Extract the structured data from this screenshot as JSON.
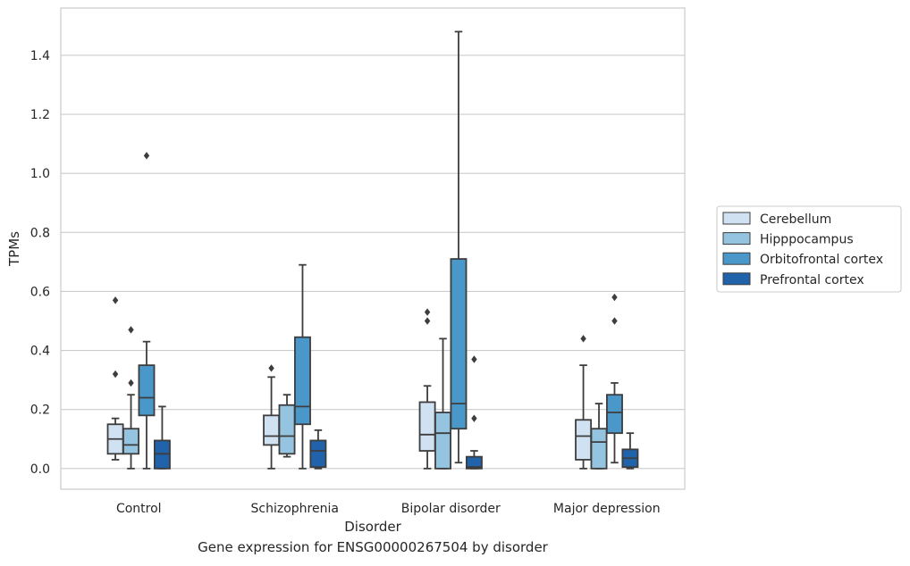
{
  "chart_data": {
    "type": "box",
    "xlabel": "Disorder",
    "ylabel": "TPMs",
    "caption": "Gene expression for ENSG00000267504 by disorder",
    "ylim": [
      -0.07,
      1.56
    ],
    "yticks": [
      "0.0",
      "0.2",
      "0.4",
      "0.6",
      "0.8",
      "1.0",
      "1.2",
      "1.4"
    ],
    "ytick_values": [
      0.0,
      0.2,
      0.4,
      0.6,
      0.8,
      1.0,
      1.2,
      1.4
    ],
    "grid": "horizontal",
    "legend_position": "right",
    "categories": [
      "Control",
      "Schizophrenia",
      "Bipolar disorder",
      "Major depression"
    ],
    "series": [
      {
        "name": "Cerebellum",
        "color": "#d0e1f2",
        "boxes": [
          {
            "whislo": 0.03,
            "q1": 0.05,
            "med": 0.1,
            "q3": 0.15,
            "whishi": 0.17,
            "fliers": [
              0.32,
              0.57
            ]
          },
          {
            "whislo": 0.0,
            "q1": 0.08,
            "med": 0.11,
            "q3": 0.18,
            "whishi": 0.31,
            "fliers": [
              0.34
            ]
          },
          {
            "whislo": 0.0,
            "q1": 0.06,
            "med": 0.115,
            "q3": 0.225,
            "whishi": 0.28,
            "fliers": [
              0.5,
              0.53
            ]
          },
          {
            "whislo": 0.0,
            "q1": 0.03,
            "med": 0.11,
            "q3": 0.165,
            "whishi": 0.35,
            "fliers": [
              0.44
            ]
          }
        ]
      },
      {
        "name": "Hipppocampus",
        "color": "#94c4df",
        "boxes": [
          {
            "whislo": 0.0,
            "q1": 0.05,
            "med": 0.08,
            "q3": 0.135,
            "whishi": 0.25,
            "fliers": [
              0.29,
              0.47
            ]
          },
          {
            "whislo": 0.04,
            "q1": 0.05,
            "med": 0.11,
            "q3": 0.215,
            "whishi": 0.25,
            "fliers": []
          },
          {
            "whislo": 0.0,
            "q1": 0.0,
            "med": 0.12,
            "q3": 0.19,
            "whishi": 0.44,
            "fliers": []
          },
          {
            "whislo": 0.0,
            "q1": 0.0,
            "med": 0.09,
            "q3": 0.135,
            "whishi": 0.22,
            "fliers": []
          }
        ]
      },
      {
        "name": "Orbitofrontal cortex",
        "color": "#4a98c9",
        "boxes": [
          {
            "whislo": 0.0,
            "q1": 0.18,
            "med": 0.24,
            "q3": 0.35,
            "whishi": 0.43,
            "fliers": [
              1.06
            ]
          },
          {
            "whislo": 0.0,
            "q1": 0.15,
            "med": 0.21,
            "q3": 0.445,
            "whishi": 0.69,
            "fliers": []
          },
          {
            "whislo": 0.02,
            "q1": 0.135,
            "med": 0.22,
            "q3": 0.71,
            "whishi": 1.48,
            "fliers": []
          },
          {
            "whislo": 0.02,
            "q1": 0.12,
            "med": 0.19,
            "q3": 0.25,
            "whishi": 0.29,
            "fliers": [
              0.5,
              0.58
            ]
          }
        ]
      },
      {
        "name": "Prefrontal cortex",
        "color": "#2163aa",
        "boxes": [
          {
            "whislo": 0.0,
            "q1": 0.0,
            "med": 0.05,
            "q3": 0.095,
            "whishi": 0.21,
            "fliers": []
          },
          {
            "whislo": 0.0,
            "q1": 0.005,
            "med": 0.06,
            "q3": 0.095,
            "whishi": 0.13,
            "fliers": []
          },
          {
            "whislo": 0.0,
            "q1": 0.0,
            "med": 0.005,
            "q3": 0.04,
            "whishi": 0.06,
            "fliers": [
              0.17,
              0.37
            ]
          },
          {
            "whislo": 0.0,
            "q1": 0.005,
            "med": 0.035,
            "q3": 0.065,
            "whishi": 0.12,
            "fliers": []
          }
        ]
      }
    ]
  }
}
